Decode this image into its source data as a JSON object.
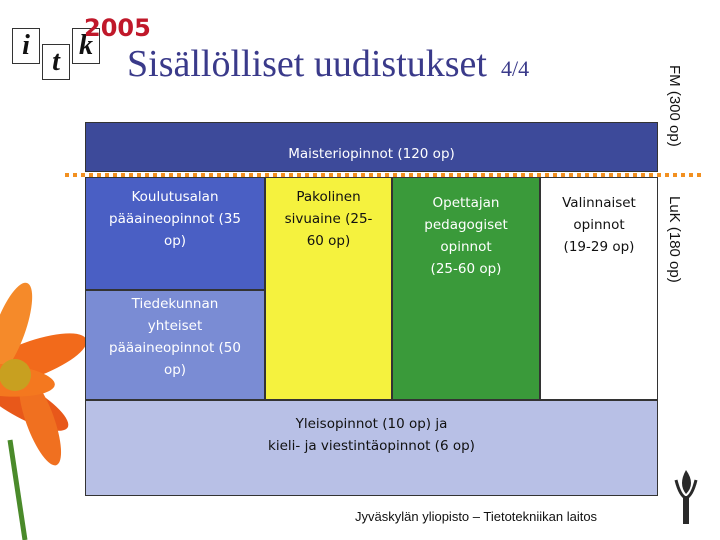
{
  "header": {
    "logo": {
      "letters": [
        "i",
        "t",
        "k"
      ],
      "year": "2005"
    },
    "title": "Sisällölliset uudistukset",
    "page": "4/4"
  },
  "side_labels": [
    "FM (300 op)",
    "LuK (180 op)"
  ],
  "boxes": [
    {
      "lines": [
        "Maisteriopinnot (120 op)"
      ]
    },
    {
      "lines": [
        "Koulutusalan",
        "pääaineopinnot (35",
        "op)"
      ]
    },
    {
      "lines": [
        "Pakolinen",
        "sivuaine (25-",
        "60 op)"
      ]
    },
    {
      "lines": [
        "Opettajan",
        "pedagogiset",
        "opinnot",
        "(25-60 op)"
      ]
    },
    {
      "lines": [
        "Valinnaiset",
        "opinnot",
        "(19-29 op)"
      ]
    },
    {
      "lines": [
        "Tiedekunnan",
        "yhteiset",
        "pääaineopinnot (50",
        "op)"
      ]
    },
    {
      "lines": [
        "Yleisopinnot (10 op) ja",
        "kieli- ja viestintäopinnot (6 op)"
      ]
    }
  ],
  "footer": "Jyväskylän yliopisto – Tietotekniikan laitos"
}
